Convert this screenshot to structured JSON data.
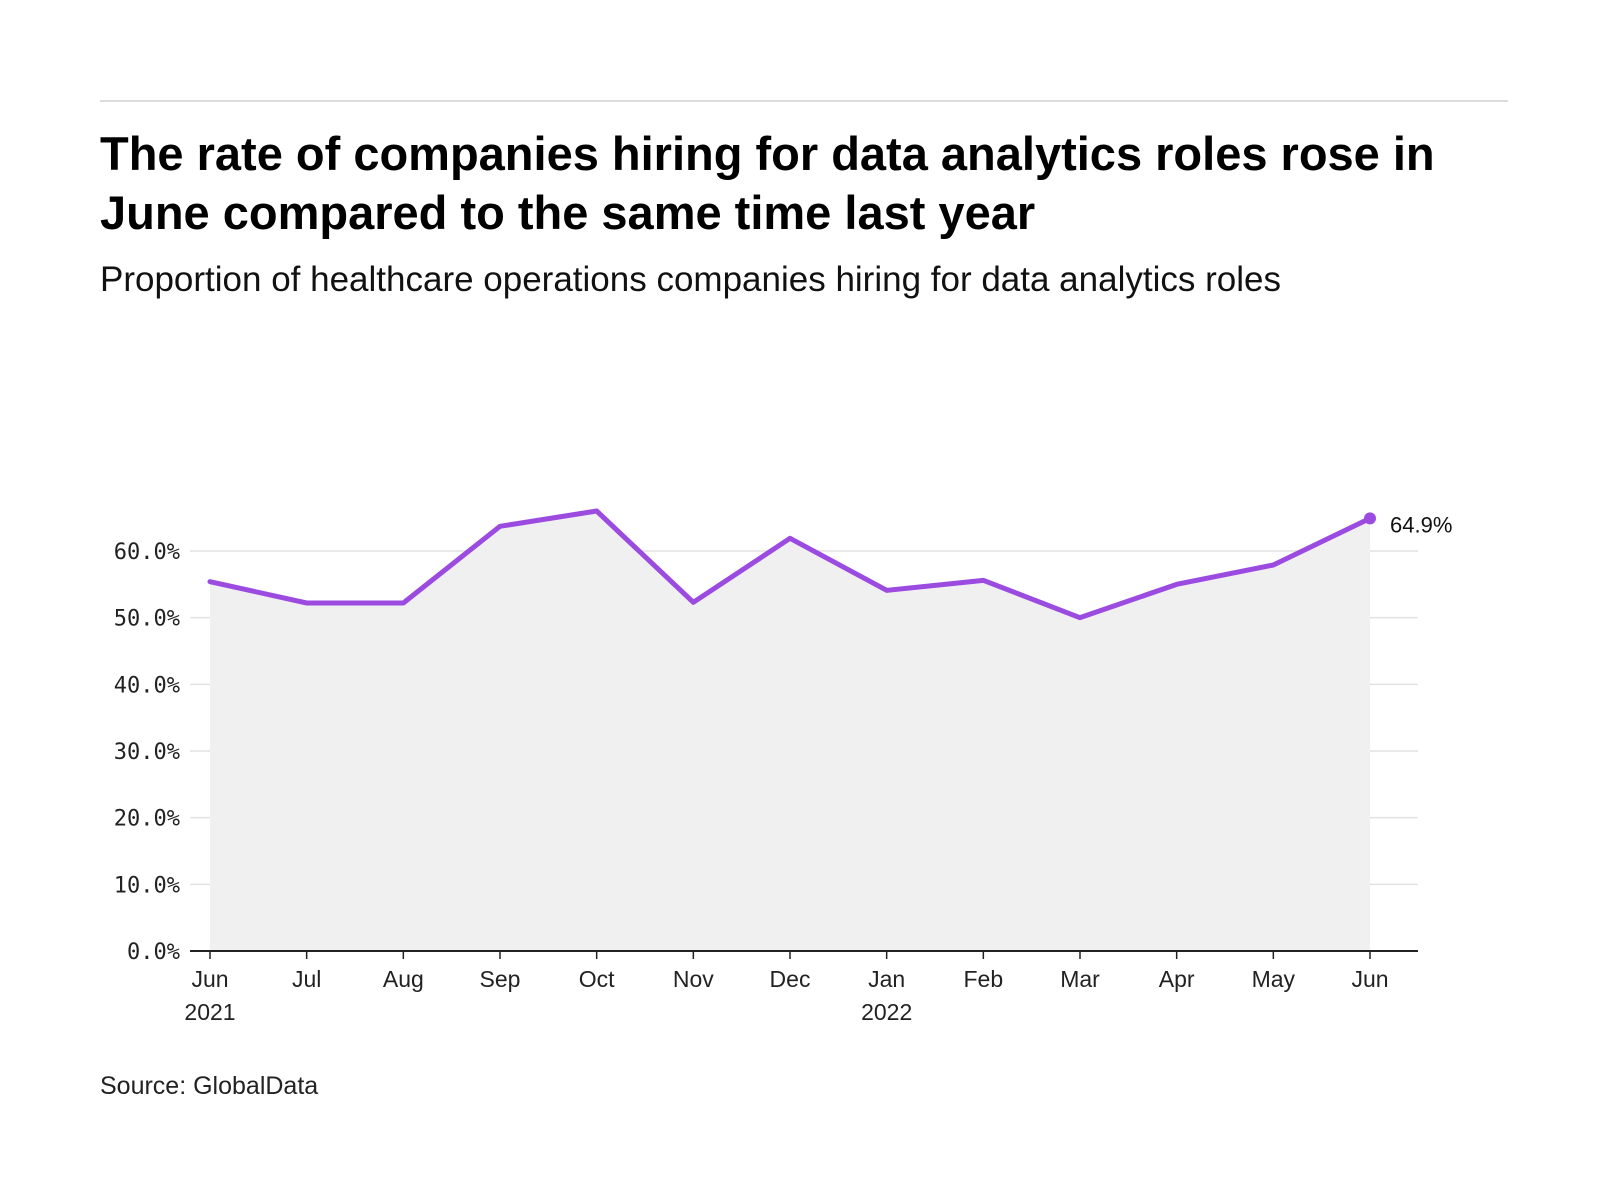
{
  "header": {
    "title": "The rate of companies hiring for data analytics roles rose in June compared to the same time last year",
    "subtitle": "Proportion of healthcare operations companies hiring for data analytics roles"
  },
  "footer": {
    "source": "Source: GlobalData"
  },
  "colors": {
    "line": "#9b4be0",
    "area": "#f0f0f0",
    "grid": "#e2e2e2",
    "axis": "#222222"
  },
  "chart_data": {
    "type": "area",
    "categories": [
      "Jun 2021",
      "Jul",
      "Aug",
      "Sep",
      "Oct",
      "Nov",
      "Dec",
      "Jan 2022",
      "Feb",
      "Mar",
      "Apr",
      "May",
      "Jun"
    ],
    "x_tick_labels": [
      [
        "Jun",
        "2021"
      ],
      [
        "Jul"
      ],
      [
        "Aug"
      ],
      [
        "Sep"
      ],
      [
        "Oct"
      ],
      [
        "Nov"
      ],
      [
        "Dec"
      ],
      [
        "Jan",
        "2022"
      ],
      [
        "Feb"
      ],
      [
        "Mar"
      ],
      [
        "Apr"
      ],
      [
        "May"
      ],
      [
        "Jun"
      ]
    ],
    "series": [
      {
        "values": [
          55.4,
          52.2,
          52.2,
          63.7,
          66.0,
          52.3,
          61.9,
          54.1,
          55.6,
          50.0,
          55.0,
          57.9,
          64.9
        ]
      }
    ],
    "end_label": "64.9%",
    "ylim": [
      0,
      67
    ],
    "y_ticks": [
      0,
      10,
      20,
      30,
      40,
      50,
      60
    ],
    "y_tick_labels": [
      "0.0%",
      "10.0%",
      "20.0%",
      "30.0%",
      "40.0%",
      "50.0%",
      "60.0%"
    ],
    "xlabel": "",
    "ylabel": "",
    "grid": true
  }
}
